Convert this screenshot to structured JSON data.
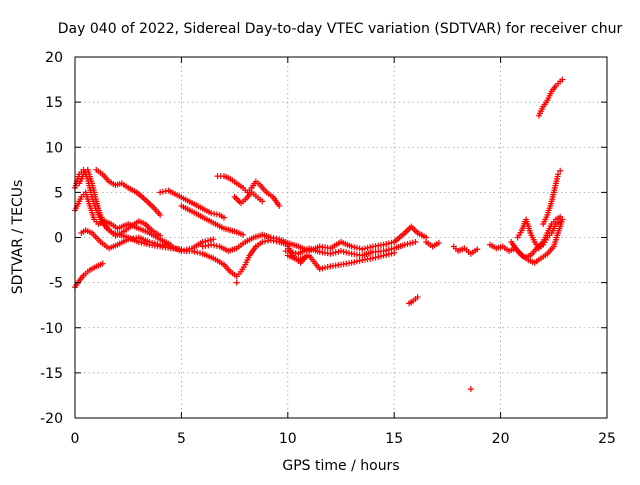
{
  "chart_data": {
    "type": "scatter",
    "title": "Day 040 of 2022, Sidereal Day-to-day VTEC variation (SDTVAR) for receiver chur",
    "xlabel": "GPS time / hours",
    "ylabel": "SDTVAR / TECUs",
    "xlim": [
      0,
      25
    ],
    "ylim": [
      -20,
      20
    ],
    "xticks": [
      0,
      5,
      10,
      15,
      20,
      25
    ],
    "yticks": [
      -20,
      -15,
      -10,
      -5,
      0,
      5,
      10,
      15,
      20
    ],
    "grid": true,
    "marker": "+",
    "color": "#ff0000",
    "tracks": [
      {
        "name": "track-1",
        "points": [
          [
            0.0,
            5.5
          ],
          [
            0.2,
            7.0
          ],
          [
            0.4,
            7.5
          ],
          [
            0.6,
            6.5
          ],
          [
            0.8,
            4.5
          ],
          [
            1.0,
            3.0
          ],
          [
            1.2,
            2.0
          ],
          [
            1.5,
            1.0
          ],
          [
            1.8,
            0.5
          ],
          [
            2.1,
            0.3
          ],
          [
            2.5,
            0.0
          ],
          [
            3.0,
            -0.5
          ],
          [
            3.5,
            -0.8
          ],
          [
            4.0,
            -1.0
          ],
          [
            4.5,
            -1.2
          ],
          [
            5.0,
            -1.3
          ]
        ]
      },
      {
        "name": "track-2",
        "points": [
          [
            0.0,
            3.0
          ],
          [
            0.3,
            4.5
          ],
          [
            0.5,
            5.0
          ],
          [
            0.7,
            3.5
          ],
          [
            0.9,
            2.0
          ],
          [
            1.1,
            1.5
          ],
          [
            1.4,
            1.8
          ],
          [
            1.7,
            1.5
          ],
          [
            2.0,
            1.0
          ],
          [
            2.5,
            1.5
          ],
          [
            3.0,
            1.0
          ],
          [
            3.5,
            0.5
          ],
          [
            4.0,
            -0.2
          ],
          [
            4.5,
            -0.8
          ]
        ]
      },
      {
        "name": "track-3",
        "points": [
          [
            0.2,
            6.0
          ],
          [
            0.4,
            7.0
          ],
          [
            0.6,
            7.5
          ],
          [
            0.8,
            6.0
          ],
          [
            1.0,
            4.0
          ],
          [
            1.2,
            2.5
          ],
          [
            1.4,
            1.5
          ],
          [
            1.6,
            0.8
          ],
          [
            1.9,
            0.2
          ],
          [
            2.2,
            0.5
          ],
          [
            2.6,
            1.2
          ],
          [
            3.0,
            1.8
          ],
          [
            3.3,
            1.5
          ],
          [
            3.6,
            0.8
          ],
          [
            4.0,
            0.2
          ]
        ]
      },
      {
        "name": "track-4",
        "points": [
          [
            0.0,
            -5.5
          ],
          [
            0.2,
            -4.8
          ],
          [
            0.4,
            -4.2
          ],
          [
            0.7,
            -3.6
          ],
          [
            1.0,
            -3.2
          ],
          [
            1.3,
            -2.9
          ]
        ]
      },
      {
        "name": "track-5",
        "points": [
          [
            0.3,
            0.5
          ],
          [
            0.5,
            0.8
          ],
          [
            0.8,
            0.5
          ],
          [
            1.2,
            -0.5
          ],
          [
            1.6,
            -1.2
          ],
          [
            2.0,
            -0.8
          ],
          [
            2.5,
            -0.2
          ],
          [
            3.0,
            0.0
          ],
          [
            3.5,
            -0.5
          ],
          [
            4.0,
            -0.8
          ],
          [
            4.5,
            -1.0
          ],
          [
            5.0,
            -1.5
          ],
          [
            5.5,
            -1.2
          ],
          [
            6.0,
            -0.5
          ],
          [
            6.5,
            -0.2
          ]
        ]
      },
      {
        "name": "track-6",
        "points": [
          [
            1.0,
            7.5
          ],
          [
            1.3,
            7.0
          ],
          [
            1.6,
            6.2
          ],
          [
            1.9,
            5.8
          ],
          [
            2.2,
            6.0
          ],
          [
            2.5,
            5.5
          ],
          [
            2.9,
            5.0
          ],
          [
            3.3,
            4.2
          ],
          [
            3.7,
            3.3
          ],
          [
            4.0,
            2.5
          ]
        ]
      },
      {
        "name": "track-7",
        "points": [
          [
            4.0,
            5.0
          ],
          [
            4.4,
            5.2
          ],
          [
            4.8,
            4.7
          ],
          [
            5.2,
            4.2
          ],
          [
            5.6,
            3.7
          ],
          [
            6.0,
            3.2
          ],
          [
            6.4,
            2.7
          ],
          [
            6.8,
            2.5
          ],
          [
            7.0,
            2.2
          ]
        ]
      },
      {
        "name": "track-8",
        "points": [
          [
            5.0,
            3.5
          ],
          [
            5.4,
            3.0
          ],
          [
            5.8,
            2.5
          ],
          [
            6.2,
            2.0
          ],
          [
            6.6,
            1.5
          ],
          [
            7.0,
            1.0
          ],
          [
            7.3,
            0.8
          ],
          [
            7.6,
            0.6
          ],
          [
            7.9,
            0.3
          ]
        ]
      },
      {
        "name": "track-9",
        "points": [
          [
            6.7,
            6.8
          ],
          [
            7.0,
            6.8
          ],
          [
            7.3,
            6.5
          ],
          [
            7.6,
            6.0
          ],
          [
            7.9,
            5.5
          ],
          [
            8.1,
            5.0
          ],
          [
            8.3,
            5.5
          ],
          [
            8.5,
            6.2
          ],
          [
            8.7,
            5.8
          ],
          [
            9.0,
            5.0
          ],
          [
            9.3,
            4.5
          ],
          [
            9.6,
            3.5
          ]
        ]
      },
      {
        "name": "track-10",
        "points": [
          [
            7.5,
            4.5
          ],
          [
            7.8,
            3.8
          ],
          [
            8.0,
            4.2
          ],
          [
            8.3,
            5.0
          ],
          [
            8.5,
            4.6
          ],
          [
            8.8,
            4.0
          ]
        ]
      },
      {
        "name": "track-11",
        "points": [
          [
            5.0,
            -1.5
          ],
          [
            5.5,
            -1.5
          ],
          [
            6.0,
            -1.8
          ],
          [
            6.5,
            -2.3
          ],
          [
            7.0,
            -3.0
          ],
          [
            7.3,
            -3.8
          ],
          [
            7.6,
            -4.3
          ],
          [
            7.8,
            -3.8
          ],
          [
            8.0,
            -3.0
          ],
          [
            8.2,
            -2.0
          ],
          [
            8.5,
            -1.0
          ],
          [
            8.8,
            -0.5
          ],
          [
            9.2,
            -0.3
          ],
          [
            9.6,
            -0.5
          ],
          [
            10.0,
            -0.8
          ]
        ]
      },
      {
        "name": "track-12",
        "points": [
          [
            6.0,
            -1.0
          ],
          [
            6.4,
            -0.8
          ],
          [
            6.8,
            -1.0
          ],
          [
            7.2,
            -1.5
          ],
          [
            7.6,
            -1.2
          ],
          [
            8.0,
            -0.5
          ],
          [
            8.4,
            0.0
          ],
          [
            8.8,
            0.3
          ],
          [
            9.2,
            0.0
          ],
          [
            9.6,
            -0.2
          ],
          [
            10.0,
            -0.6
          ],
          [
            10.5,
            -1.0
          ],
          [
            11.0,
            -1.5
          ],
          [
            11.5,
            -1.0
          ],
          [
            12.0,
            -1.2
          ],
          [
            12.5,
            -0.5
          ],
          [
            13.0,
            -1.0
          ],
          [
            13.5,
            -1.3
          ],
          [
            14.0,
            -1.0
          ],
          [
            14.5,
            -0.8
          ],
          [
            15.0,
            -0.5
          ],
          [
            15.5,
            0.5
          ],
          [
            15.8,
            1.2
          ],
          [
            16.1,
            0.5
          ],
          [
            16.5,
            0.0
          ]
        ]
      },
      {
        "name": "track-13",
        "points": [
          [
            10.0,
            -1.5
          ],
          [
            10.5,
            -1.8
          ],
          [
            11.0,
            -1.2
          ],
          [
            11.5,
            -1.6
          ],
          [
            12.0,
            -1.8
          ],
          [
            12.5,
            -1.5
          ],
          [
            13.0,
            -1.8
          ],
          [
            13.5,
            -2.0
          ],
          [
            14.0,
            -1.6
          ],
          [
            14.5,
            -1.5
          ],
          [
            15.0,
            -1.2
          ],
          [
            15.5,
            -0.8
          ],
          [
            16.0,
            -0.5
          ]
        ]
      },
      {
        "name": "track-14",
        "points": [
          [
            10.0,
            -2.0
          ],
          [
            10.5,
            -2.5
          ],
          [
            11.0,
            -2.0
          ],
          [
            11.5,
            -3.5
          ],
          [
            12.0,
            -3.2
          ],
          [
            12.5,
            -3.0
          ],
          [
            13.0,
            -2.8
          ],
          [
            13.5,
            -2.5
          ],
          [
            14.0,
            -2.3
          ],
          [
            14.5,
            -2.0
          ],
          [
            15.0,
            -1.7
          ]
        ]
      },
      {
        "name": "track-15",
        "points": [
          [
            10.0,
            -1.0
          ],
          [
            10.3,
            -2.2
          ],
          [
            10.6,
            -2.8
          ],
          [
            10.9,
            -2.0
          ]
        ]
      },
      {
        "name": "track-16",
        "points": [
          [
            15.7,
            -7.3
          ],
          [
            15.9,
            -7.0
          ],
          [
            16.1,
            -6.6
          ]
        ]
      },
      {
        "name": "track-17",
        "points": [
          [
            16.5,
            -0.5
          ],
          [
            16.8,
            -1.0
          ],
          [
            17.1,
            -0.6
          ]
        ]
      },
      {
        "name": "track-18",
        "points": [
          [
            17.8,
            -1.0
          ],
          [
            18.0,
            -1.5
          ],
          [
            18.3,
            -1.2
          ],
          [
            18.6,
            -1.8
          ],
          [
            18.9,
            -1.3
          ]
        ]
      },
      {
        "name": "track-19",
        "points": [
          [
            19.5,
            -0.8
          ],
          [
            19.8,
            -1.2
          ],
          [
            20.1,
            -1.0
          ],
          [
            20.4,
            -1.5
          ],
          [
            20.7,
            -1.2
          ],
          [
            21.0,
            -2.0
          ],
          [
            21.3,
            -2.5
          ],
          [
            21.6,
            -2.8
          ],
          [
            21.9,
            -2.3
          ],
          [
            22.2,
            -1.8
          ],
          [
            22.5,
            -1.0
          ],
          [
            22.7,
            0.5
          ],
          [
            22.9,
            2.0
          ]
        ]
      },
      {
        "name": "track-20",
        "points": [
          [
            20.5,
            -0.5
          ],
          [
            20.8,
            -1.5
          ],
          [
            21.1,
            -2.2
          ],
          [
            21.4,
            -2.0
          ],
          [
            21.7,
            -1.2
          ],
          [
            22.0,
            -0.5
          ],
          [
            22.2,
            0.5
          ],
          [
            22.4,
            1.5
          ],
          [
            22.6,
            2.0
          ],
          [
            22.8,
            2.3
          ]
        ]
      },
      {
        "name": "track-21",
        "points": [
          [
            20.8,
            0.0
          ],
          [
            21.0,
            0.8
          ],
          [
            21.2,
            2.0
          ],
          [
            21.4,
            0.5
          ],
          [
            21.6,
            -0.5
          ],
          [
            21.8,
            -1.2
          ],
          [
            22.0,
            -0.8
          ],
          [
            22.2,
            0.0
          ],
          [
            22.4,
            0.5
          ],
          [
            22.6,
            1.5
          ],
          [
            22.8,
            1.8
          ]
        ]
      },
      {
        "name": "track-22",
        "points": [
          [
            22.0,
            1.5
          ],
          [
            22.2,
            2.5
          ],
          [
            22.4,
            4.0
          ],
          [
            22.5,
            5.0
          ],
          [
            22.6,
            6.0
          ],
          [
            22.7,
            7.0
          ],
          [
            22.8,
            7.4
          ]
        ]
      },
      {
        "name": "track-23",
        "points": [
          [
            21.8,
            13.5
          ],
          [
            22.0,
            14.5
          ],
          [
            22.2,
            15.2
          ],
          [
            22.4,
            16.2
          ],
          [
            22.6,
            16.8
          ],
          [
            22.8,
            17.3
          ],
          [
            22.9,
            17.5
          ]
        ]
      },
      {
        "name": "track-24",
        "points": [
          [
            7.6,
            -5.0
          ],
          [
            9.9,
            -1.5
          ],
          [
            15.8,
            -7.2
          ],
          [
            18.6,
            -16.8
          ],
          [
            16.3,
            0.3
          ]
        ]
      }
    ]
  }
}
